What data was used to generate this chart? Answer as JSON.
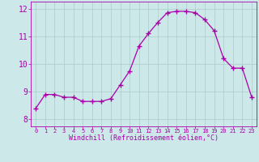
{
  "hours": [
    0,
    1,
    2,
    3,
    4,
    5,
    6,
    7,
    8,
    9,
    10,
    11,
    12,
    13,
    14,
    15,
    16,
    17,
    18,
    19,
    20,
    21,
    22,
    23
  ],
  "values": [
    8.4,
    8.9,
    8.9,
    8.8,
    8.8,
    8.65,
    8.65,
    8.65,
    8.75,
    9.25,
    9.75,
    10.65,
    11.1,
    11.5,
    11.85,
    11.9,
    11.9,
    11.85,
    11.6,
    11.2,
    10.2,
    9.85,
    9.85,
    8.8
  ],
  "line_color": "#aa00aa",
  "marker": "+",
  "marker_size": 4,
  "bg_color": "#cce8e8",
  "grid_color": "#aacccc",
  "xlabel": "Windchill (Refroidissement éolien,°C)",
  "xlabel_color": "#aa00aa",
  "tick_color": "#aa00aa",
  "ylim": [
    7.75,
    12.25
  ],
  "yticks": [
    8,
    9,
    10,
    11,
    12
  ],
  "xlim": [
    -0.5,
    23.5
  ],
  "xticks": [
    0,
    1,
    2,
    3,
    4,
    5,
    6,
    7,
    8,
    9,
    10,
    11,
    12,
    13,
    14,
    15,
    16,
    17,
    18,
    19,
    20,
    21,
    22,
    23
  ]
}
